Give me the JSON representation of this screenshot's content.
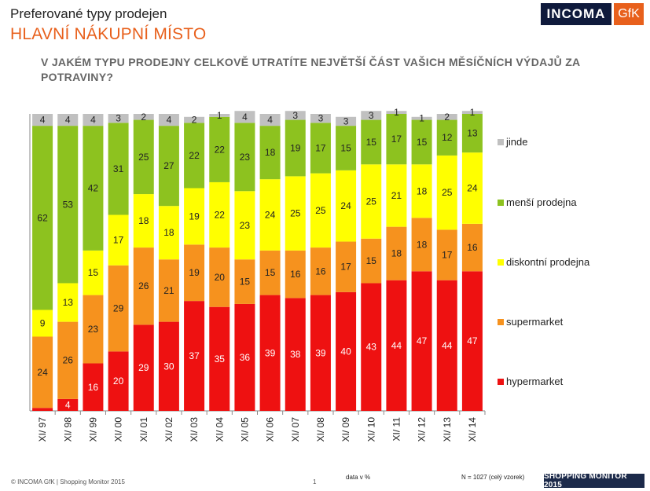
{
  "header": {
    "title": "Preferované typy prodejen",
    "subtitle": "HLAVNÍ NÁKUPNÍ MÍSTO",
    "question": "V JAKÉM TYPU PRODEJNY CELKOVĚ UTRATÍTE NEJVĚTŠÍ ČÁST VAŠICH MĚSÍČNÍCH VÝDAJŮ ZA POTRAVINY?"
  },
  "logos": {
    "incoma": "INCOMA",
    "gfk": "GfK"
  },
  "footer": {
    "copyright": "© INCOMA GfK | Shopping Monitor 2015",
    "page": "1",
    "data_note": "data v %",
    "sample": "N = 1027  (celý vzorek)",
    "badge": "SHOPPING MONITOR 2015"
  },
  "colors": {
    "hypermarket": "#ee1111",
    "supermarket": "#f6921e",
    "diskont": "#ffff00",
    "mensi": "#8dc21f",
    "jinde": "#c0c0c0"
  },
  "chart_data": {
    "type": "bar",
    "stacked": true,
    "categories": [
      "XI/ 97",
      "XI/ 98",
      "XI/ 99",
      "XI/ 00",
      "XI/ 01",
      "XI/ 02",
      "XI/ 03",
      "XI/ 04",
      "XI/ 05",
      "XI/ 06",
      "XI/ 07",
      "XI/ 08",
      "XI/ 09",
      "XI/ 10",
      "XI/ 11",
      "XI/ 12",
      "XI/ 13",
      "XI/ 14"
    ],
    "ylim": [
      0,
      100
    ],
    "legend_position": "right",
    "series": [
      {
        "name": "hypermarket",
        "values": [
          1,
          4,
          16,
          20,
          29,
          30,
          37,
          35,
          36,
          39,
          38,
          39,
          40,
          43,
          44,
          47,
          44,
          47
        ]
      },
      {
        "name": "supermarket",
        "values": [
          24,
          26,
          23,
          29,
          26,
          21,
          19,
          20,
          15,
          15,
          16,
          16,
          17,
          15,
          18,
          18,
          17,
          16
        ]
      },
      {
        "name": "diskontní prodejna",
        "values": [
          9,
          13,
          15,
          17,
          18,
          18,
          19,
          22,
          23,
          24,
          25,
          25,
          24,
          25,
          21,
          18,
          25,
          24
        ]
      },
      {
        "name": "menší prodejna",
        "values": [
          62,
          53,
          42,
          31,
          25,
          27,
          22,
          22,
          23,
          18,
          19,
          17,
          15,
          15,
          17,
          15,
          12,
          13
        ]
      },
      {
        "name": "jinde",
        "values": [
          4,
          4,
          4,
          3,
          2,
          4,
          2,
          1,
          4,
          4,
          3,
          3,
          3,
          3,
          1,
          1,
          2,
          1
        ]
      }
    ],
    "hidden_labels": {
      "hypermarket": [
        0
      ]
    },
    "legend_order": [
      "jinde",
      "menší prodejna",
      "diskontní prodejna",
      "supermarket",
      "hypermarket"
    ]
  }
}
